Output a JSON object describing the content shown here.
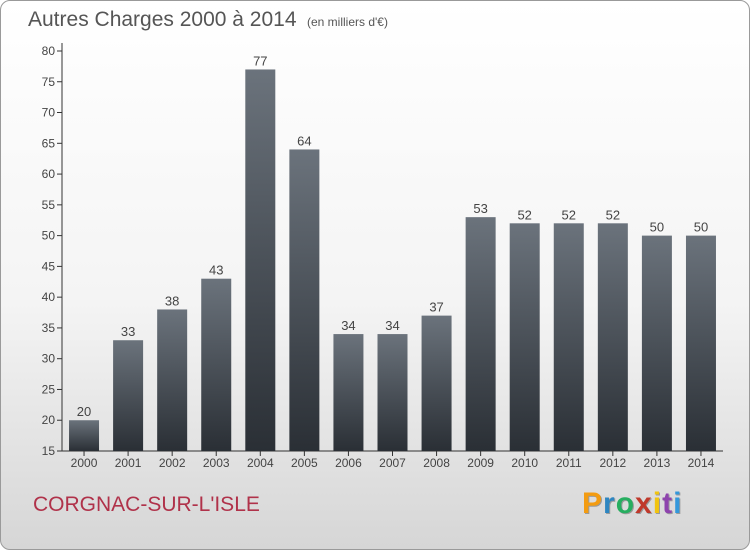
{
  "header": {
    "title": "Autres Charges 2000 à 2014",
    "subtitle": "(en milliers d'€)"
  },
  "footer": {
    "commune": "CORGNAC-SUR-L'ISLE",
    "logo_text": "Proxiti",
    "logo_colors": [
      "#f39c12",
      "#2e86c1",
      "#27ae60",
      "#c0392b",
      "#f1c40f",
      "#8e44ad",
      "#3498db"
    ]
  },
  "colors": {
    "bar_top": "#6b737c",
    "bar_bottom": "#2a2f35",
    "axis": "#333333",
    "grid": "#d0d0d0",
    "text": "#444444"
  },
  "chart_data": {
    "type": "bar",
    "title": "Autres Charges 2000 à 2014",
    "subtitle": "(en milliers d'€)",
    "categories": [
      "2000",
      "2001",
      "2002",
      "2003",
      "2004",
      "2005",
      "2006",
      "2007",
      "2008",
      "2009",
      "2010",
      "2011",
      "2012",
      "2013",
      "2014"
    ],
    "values": [
      20,
      33,
      38,
      43,
      77,
      64,
      34,
      34,
      37,
      53,
      52,
      52,
      52,
      50,
      50
    ],
    "ylim": [
      15,
      80
    ],
    "yticks": [
      15,
      20,
      25,
      30,
      35,
      40,
      45,
      50,
      55,
      60,
      65,
      70,
      75,
      80
    ],
    "grid": false,
    "data_labels": true
  }
}
